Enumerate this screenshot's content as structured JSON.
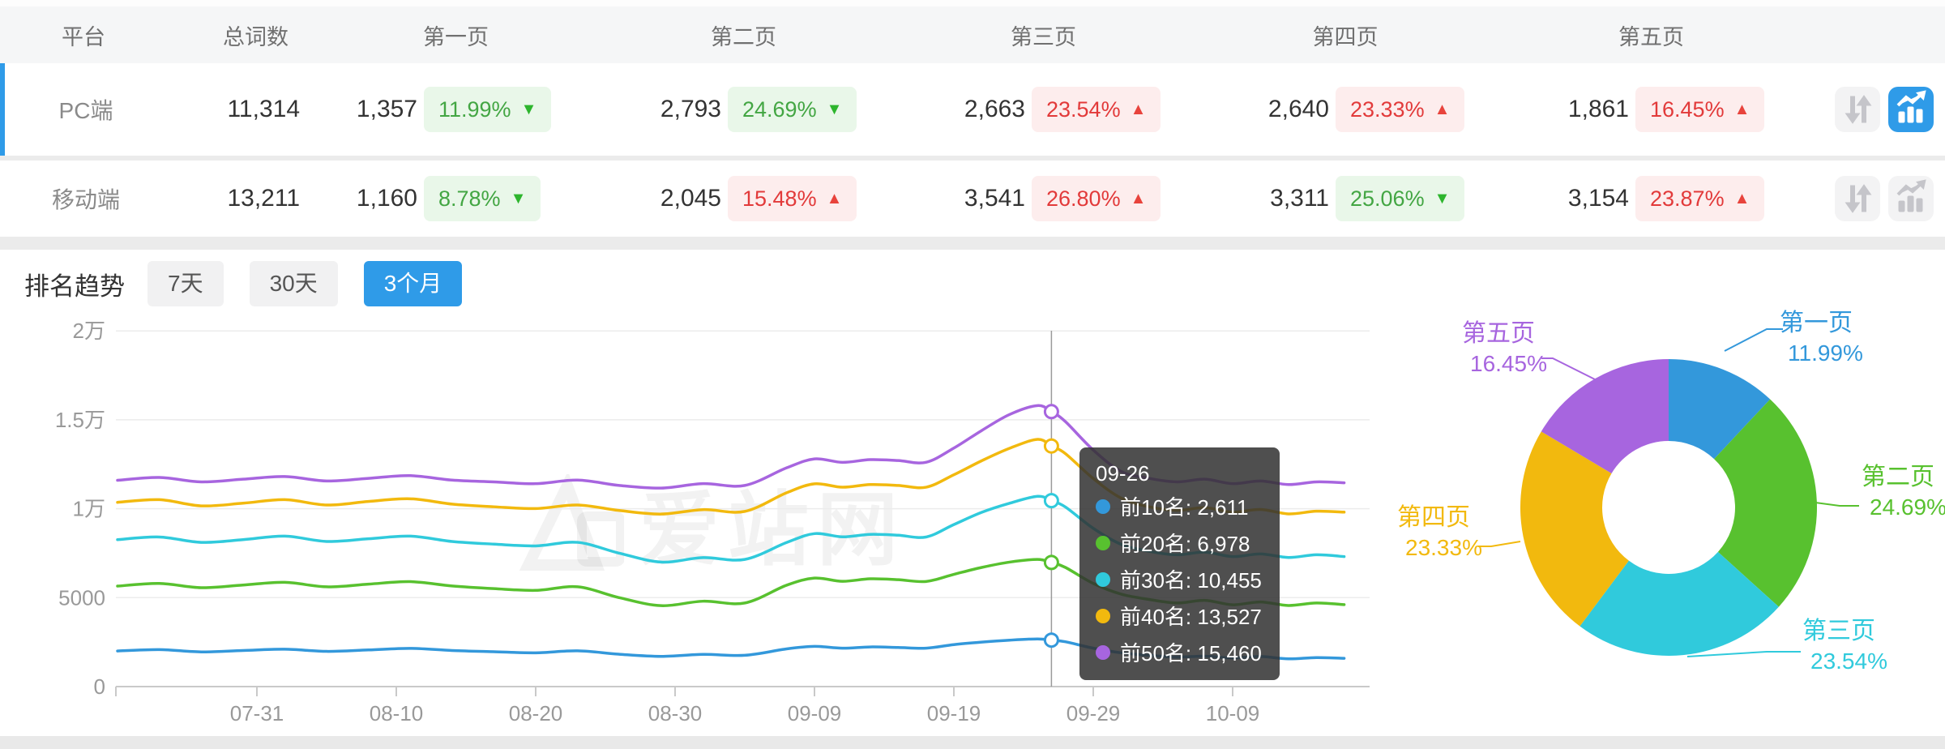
{
  "table": {
    "headers": {
      "platform": "平台",
      "total": "总词数",
      "pages": [
        "第一页",
        "第二页",
        "第三页",
        "第四页",
        "第五页"
      ]
    },
    "rows": [
      {
        "platform": "PC端",
        "total": "11,314",
        "active": true,
        "pages": [
          {
            "count": "1,357",
            "pct": "11.99%",
            "dir": "down"
          },
          {
            "count": "2,793",
            "pct": "24.69%",
            "dir": "down"
          },
          {
            "count": "2,663",
            "pct": "23.54%",
            "dir": "up"
          },
          {
            "count": "2,640",
            "pct": "23.33%",
            "dir": "up"
          },
          {
            "count": "1,861",
            "pct": "16.45%",
            "dir": "up"
          }
        ]
      },
      {
        "platform": "移动端",
        "total": "13,211",
        "active": false,
        "pages": [
          {
            "count": "1,160",
            "pct": "8.78%",
            "dir": "down"
          },
          {
            "count": "2,045",
            "pct": "15.48%",
            "dir": "up"
          },
          {
            "count": "3,541",
            "pct": "26.80%",
            "dir": "up"
          },
          {
            "count": "3,311",
            "pct": "25.06%",
            "dir": "down"
          },
          {
            "count": "3,154",
            "pct": "23.87%",
            "dir": "up"
          }
        ]
      }
    ]
  },
  "trend": {
    "title": "排名趋势",
    "tabs": [
      {
        "label": "7天",
        "active": false
      },
      {
        "label": "30天",
        "active": false
      },
      {
        "label": "3个月",
        "active": true
      }
    ]
  },
  "watermark_text": "爱站网",
  "colors": {
    "accent_blue": "#2F9BE8",
    "badge_up_red": "#E23A3A",
    "badge_down_green": "#43A643"
  },
  "tooltip": {
    "date": "09-26",
    "items": [
      {
        "label": "前10名",
        "value": "2,611"
      },
      {
        "label": "前20名",
        "value": "6,978"
      },
      {
        "label": "前30名",
        "value": "10,455"
      },
      {
        "label": "前40名",
        "value": "13,527"
      },
      {
        "label": "前50名",
        "value": "15,460"
      }
    ]
  },
  "chart_data": [
    {
      "type": "line",
      "title": "排名趋势 (3个月)",
      "x_tick_labels": [
        "07-31",
        "08-10",
        "08-20",
        "08-30",
        "09-09",
        "09-19",
        "09-29",
        "10-09"
      ],
      "x_tick_days": [
        10,
        20,
        30,
        40,
        50,
        60,
        70,
        80
      ],
      "y_tick_labels": [
        "0",
        "5000",
        "1万",
        "1.5万",
        "2万"
      ],
      "y_tick_values": [
        0,
        5000,
        10000,
        15000,
        20000
      ],
      "ylim": [
        0,
        20000
      ],
      "grid": true,
      "crosshair": {
        "day": 67,
        "date": "09-26"
      },
      "series": [
        {
          "name": "前10名",
          "color": "#3398DB",
          "points": [
            [
              0,
              2000
            ],
            [
              3,
              2080
            ],
            [
              6,
              1950
            ],
            [
              9,
              2030
            ],
            [
              12,
              2100
            ],
            [
              15,
              1980
            ],
            [
              18,
              2060
            ],
            [
              21,
              2150
            ],
            [
              24,
              2030
            ],
            [
              27,
              1960
            ],
            [
              30,
              1900
            ],
            [
              33,
              2010
            ],
            [
              36,
              1820
            ],
            [
              39,
              1700
            ],
            [
              42,
              1810
            ],
            [
              45,
              1760
            ],
            [
              48,
              2120
            ],
            [
              50,
              2260
            ],
            [
              52,
              2160
            ],
            [
              54,
              2230
            ],
            [
              56,
              2200
            ],
            [
              58,
              2160
            ],
            [
              60,
              2360
            ],
            [
              62,
              2500
            ],
            [
              64,
              2610
            ],
            [
              66,
              2680
            ],
            [
              67,
              2611
            ],
            [
              68,
              2520
            ],
            [
              70,
              2160
            ],
            [
              72,
              1900
            ],
            [
              74,
              1760
            ],
            [
              76,
              1660
            ],
            [
              78,
              1710
            ],
            [
              80,
              1610
            ],
            [
              82,
              1690
            ],
            [
              84,
              1560
            ],
            [
              86,
              1630
            ],
            [
              88,
              1590
            ]
          ]
        },
        {
          "name": "前20名",
          "color": "#58C12F",
          "points": [
            [
              0,
              5650
            ],
            [
              3,
              5800
            ],
            [
              6,
              5560
            ],
            [
              9,
              5710
            ],
            [
              12,
              5860
            ],
            [
              15,
              5610
            ],
            [
              18,
              5760
            ],
            [
              21,
              5900
            ],
            [
              24,
              5660
            ],
            [
              27,
              5510
            ],
            [
              30,
              5410
            ],
            [
              33,
              5610
            ],
            [
              36,
              5000
            ],
            [
              39,
              4550
            ],
            [
              42,
              4800
            ],
            [
              45,
              4700
            ],
            [
              48,
              5700
            ],
            [
              50,
              6100
            ],
            [
              52,
              5920
            ],
            [
              54,
              6060
            ],
            [
              56,
              6010
            ],
            [
              58,
              5910
            ],
            [
              60,
              6310
            ],
            [
              62,
              6700
            ],
            [
              64,
              7000
            ],
            [
              66,
              7150
            ],
            [
              67,
              6978
            ],
            [
              68,
              6700
            ],
            [
              70,
              5800
            ],
            [
              72,
              5200
            ],
            [
              74,
              4900
            ],
            [
              76,
              4700
            ],
            [
              78,
              4850
            ],
            [
              80,
              4600
            ],
            [
              82,
              4760
            ],
            [
              84,
              4560
            ],
            [
              86,
              4700
            ],
            [
              88,
              4610
            ]
          ]
        },
        {
          "name": "前30名",
          "color": "#30CADC",
          "points": [
            [
              0,
              8260
            ],
            [
              3,
              8410
            ],
            [
              6,
              8110
            ],
            [
              9,
              8260
            ],
            [
              12,
              8460
            ],
            [
              15,
              8160
            ],
            [
              18,
              8310
            ],
            [
              21,
              8460
            ],
            [
              24,
              8160
            ],
            [
              27,
              8010
            ],
            [
              30,
              7910
            ],
            [
              33,
              8110
            ],
            [
              36,
              7500
            ],
            [
              39,
              7000
            ],
            [
              42,
              7250
            ],
            [
              45,
              7150
            ],
            [
              48,
              8100
            ],
            [
              50,
              8600
            ],
            [
              52,
              8420
            ],
            [
              54,
              8560
            ],
            [
              56,
              8510
            ],
            [
              58,
              8410
            ],
            [
              60,
              9110
            ],
            [
              62,
              9800
            ],
            [
              64,
              10310
            ],
            [
              66,
              10700
            ],
            [
              67,
              10455
            ],
            [
              68,
              10100
            ],
            [
              70,
              8900
            ],
            [
              72,
              8000
            ],
            [
              74,
              7610
            ],
            [
              76,
              7410
            ],
            [
              78,
              7560
            ],
            [
              80,
              7310
            ],
            [
              82,
              7460
            ],
            [
              84,
              7260
            ],
            [
              86,
              7410
            ],
            [
              88,
              7310
            ]
          ]
        },
        {
          "name": "前40名",
          "color": "#F2B90E",
          "points": [
            [
              0,
              10360
            ],
            [
              3,
              10510
            ],
            [
              6,
              10160
            ],
            [
              9,
              10310
            ],
            [
              12,
              10510
            ],
            [
              15,
              10210
            ],
            [
              18,
              10410
            ],
            [
              21,
              10560
            ],
            [
              24,
              10260
            ],
            [
              27,
              10110
            ],
            [
              30,
              10010
            ],
            [
              33,
              10210
            ],
            [
              36,
              9900
            ],
            [
              39,
              9700
            ],
            [
              42,
              9950
            ],
            [
              45,
              9850
            ],
            [
              48,
              10900
            ],
            [
              50,
              11400
            ],
            [
              52,
              11210
            ],
            [
              54,
              11360
            ],
            [
              56,
              11310
            ],
            [
              58,
              11210
            ],
            [
              60,
              11910
            ],
            [
              62,
              12700
            ],
            [
              64,
              13400
            ],
            [
              66,
              13900
            ],
            [
              67,
              13527
            ],
            [
              68,
              13100
            ],
            [
              70,
              11700
            ],
            [
              72,
              10600
            ],
            [
              74,
              10110
            ],
            [
              76,
              9910
            ],
            [
              78,
              10060
            ],
            [
              80,
              9810
            ],
            [
              82,
              9960
            ],
            [
              84,
              9710
            ],
            [
              86,
              9860
            ],
            [
              88,
              9810
            ]
          ]
        },
        {
          "name": "前50名",
          "color": "#A765DF",
          "points": [
            [
              0,
              11600
            ],
            [
              3,
              11760
            ],
            [
              6,
              11510
            ],
            [
              9,
              11660
            ],
            [
              12,
              11810
            ],
            [
              15,
              11560
            ],
            [
              18,
              11710
            ],
            [
              21,
              11860
            ],
            [
              24,
              11610
            ],
            [
              27,
              11510
            ],
            [
              30,
              11410
            ],
            [
              33,
              11610
            ],
            [
              36,
              11310
            ],
            [
              39,
              11160
            ],
            [
              42,
              11410
            ],
            [
              45,
              11310
            ],
            [
              48,
              12300
            ],
            [
              50,
              12800
            ],
            [
              52,
              12610
            ],
            [
              54,
              12760
            ],
            [
              56,
              12710
            ],
            [
              58,
              12610
            ],
            [
              60,
              13410
            ],
            [
              62,
              14400
            ],
            [
              64,
              15300
            ],
            [
              66,
              15800
            ],
            [
              67,
              15460
            ],
            [
              68,
              14900
            ],
            [
              70,
              13300
            ],
            [
              72,
              12100
            ],
            [
              74,
              11710
            ],
            [
              76,
              11510
            ],
            [
              78,
              11660
            ],
            [
              80,
              11410
            ],
            [
              82,
              11560
            ],
            [
              84,
              11360
            ],
            [
              86,
              11510
            ],
            [
              88,
              11460
            ]
          ]
        }
      ]
    },
    {
      "type": "pie",
      "style": "donut",
      "labels": [
        "第一页",
        "第二页",
        "第三页",
        "第四页",
        "第五页"
      ],
      "values": [
        11.99,
        24.69,
        23.54,
        23.33,
        16.45
      ],
      "pcts": [
        "11.99%",
        "24.69%",
        "23.54%",
        "23.33%",
        "16.45%"
      ],
      "unit": "%",
      "colors": [
        "#3398DB",
        "#58C12F",
        "#30CADC",
        "#F2B90E",
        "#A765DF"
      ],
      "legend_position": "around"
    }
  ]
}
